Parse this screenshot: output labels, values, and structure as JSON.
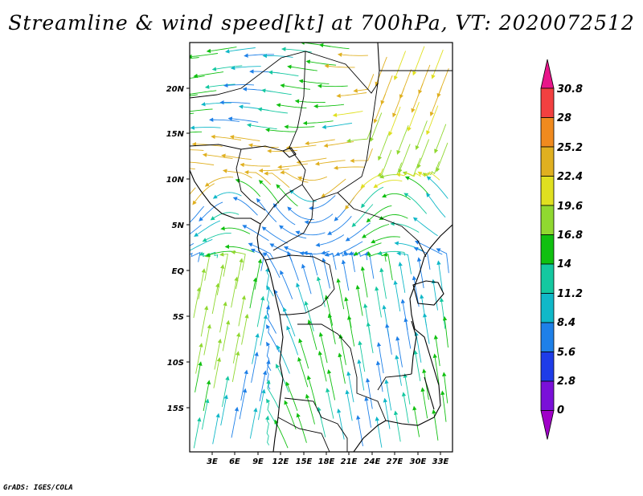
{
  "title": "Streamline & wind speed[kt] at 700hPa, VT: 2020072512",
  "credit": "GrADS: IGES/COLA",
  "map": {
    "lat_labels": [
      "20N",
      "15N",
      "10N",
      "5N",
      "EQ",
      "5S",
      "10S",
      "15S"
    ],
    "lon_labels": [
      "3E",
      "6E",
      "9E",
      "12E",
      "15E",
      "18E",
      "21E",
      "24E",
      "27E",
      "30E",
      "33E"
    ]
  },
  "colorbar": {
    "labels": [
      "30.8",
      "28",
      "25.2",
      "22.4",
      "19.6",
      "16.8",
      "14",
      "11.2",
      "8.4",
      "5.6",
      "2.8",
      "0"
    ],
    "colors": [
      "#e8158a",
      "#f24040",
      "#f08a1e",
      "#e0b020",
      "#e0e020",
      "#90d830",
      "#10c010",
      "#14c8a0",
      "#10b8c8",
      "#1e80e8",
      "#1e3ce8",
      "#7a10d8",
      "#a000c8"
    ]
  }
}
